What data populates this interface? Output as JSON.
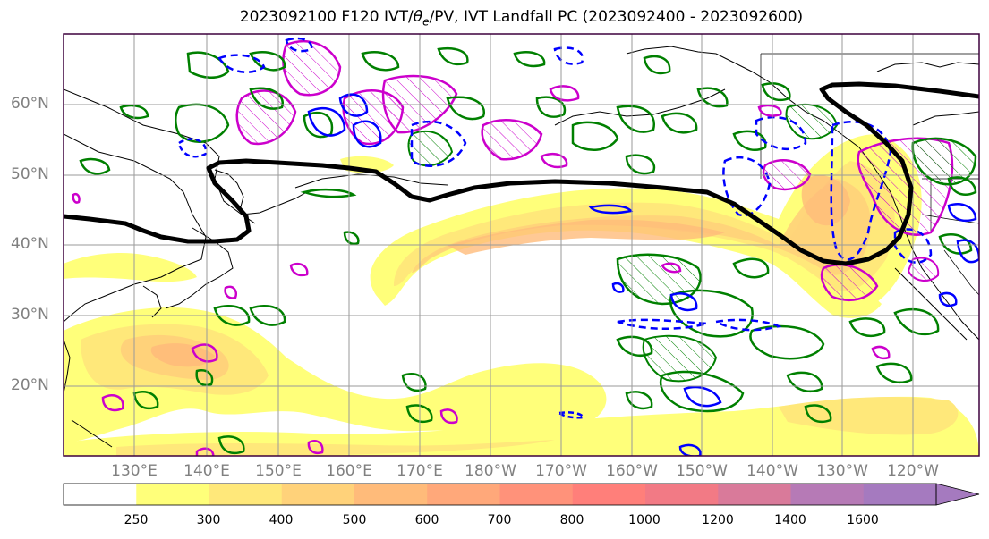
{
  "title": {
    "prefix": "2023092100 F120 IVT/",
    "theta": "θ",
    "theta_sub": "e",
    "suffix": "/PV, IVT Landfall PC (2023092400 - 2023092600)"
  },
  "map": {
    "lat_labels": [
      "60°N",
      "50°N",
      "40°N",
      "30°N",
      "20°N"
    ],
    "lon_labels": [
      "130°E",
      "140°E",
      "150°E",
      "160°E",
      "170°E",
      "180°W",
      "170°W",
      "160°W",
      "150°W",
      "140°W",
      "130°W",
      "120°W"
    ],
    "label_color": "#808080",
    "frame_color": "#3d003d",
    "ivt_fill_colors": [
      "#ffff7a",
      "#ffe87a",
      "#ffd27a",
      "#ffbb7a"
    ]
  },
  "colorbar": {
    "ticks": [
      "250",
      "300",
      "400",
      "500",
      "600",
      "700",
      "800",
      "1000",
      "1200",
      "1400",
      "1600"
    ],
    "colors": [
      "#ffffff",
      "#ffff7a",
      "#ffe87a",
      "#ffd27a",
      "#ffbb7a",
      "#ffa87a",
      "#ff927a",
      "#ff7f7a",
      "#f27a85",
      "#d97a9a",
      "#b67ab6",
      "#a57abf"
    ]
  },
  "legend_colors": {
    "landfall_pc": "#000000",
    "theta_e": "#008000",
    "pv_hatched": "#cc00cc",
    "pv_dashed": "#0000ff"
  }
}
